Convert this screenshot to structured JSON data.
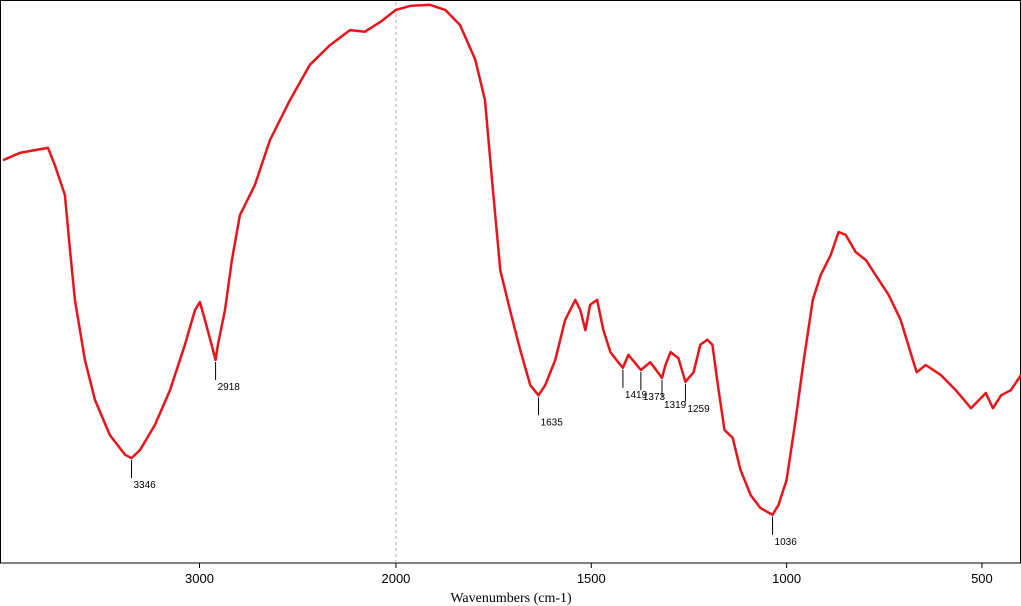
{
  "chart_data": {
    "type": "line",
    "x_label": "Wavenumbers (cm-1)",
    "xlim": [
      4000,
      400
    ],
    "xbreak": 2000,
    "xticks": [
      3000,
      2000,
      1500,
      1000,
      500
    ],
    "ylim": [
      0,
      100
    ],
    "color": "#e8141b",
    "x": [
      4000,
      3914,
      3837,
      3771,
      3736,
      3685,
      3659,
      3634,
      3583,
      3532,
      3456,
      3379,
      3346,
      3303,
      3227,
      3150,
      3074,
      3023,
      2998,
      2972,
      2918,
      2906,
      2870,
      2835,
      2794,
      2718,
      2641,
      2540,
      2438,
      2336,
      2234,
      2158,
      2081,
      2000,
      1964,
      1913,
      1874,
      1836,
      1797,
      1772,
      1754,
      1733,
      1708,
      1682,
      1656,
      1635,
      1618,
      1592,
      1567,
      1541,
      1528,
      1515,
      1503,
      1485,
      1469,
      1451,
      1431,
      1419,
      1405,
      1373,
      1349,
      1319,
      1310,
      1297,
      1277,
      1259,
      1238,
      1221,
      1203,
      1190,
      1174,
      1159,
      1138,
      1118,
      1092,
      1067,
      1036,
      1021,
      1000,
      977,
      956,
      933,
      913,
      887,
      867,
      849,
      823,
      797,
      772,
      739,
      708,
      677,
      667,
      644,
      605,
      567,
      528,
      490,
      472,
      451,
      426,
      400
    ],
    "values": [
      71.8,
      73.1,
      73.6,
      74.0,
      70.9,
      65.6,
      55.8,
      46.9,
      36.2,
      29.1,
      22.8,
      19.3,
      18.7,
      20.1,
      24.6,
      30.8,
      38.9,
      45.1,
      46.5,
      43.3,
      36.2,
      38.9,
      45.1,
      54.0,
      62.0,
      67.4,
      75.4,
      82.5,
      88.8,
      92.3,
      95.0,
      94.7,
      96.4,
      98.6,
      99.3,
      99.5,
      98.6,
      95.9,
      89.7,
      82.5,
      68.3,
      52.2,
      45.1,
      38.0,
      31.7,
      29.9,
      31.7,
      36.2,
      43.3,
      46.9,
      45.1,
      41.5,
      46.0,
      46.9,
      41.5,
      37.6,
      35.8,
      34.8,
      37.1,
      34.4,
      35.8,
      33.0,
      35.3,
      37.6,
      36.5,
      32.3,
      34.0,
      38.9,
      39.8,
      38.9,
      30.8,
      23.7,
      22.3,
      16.6,
      12.1,
      9.8,
      8.6,
      10.3,
      14.8,
      25.5,
      36.2,
      46.9,
      51.3,
      54.9,
      59.0,
      58.5,
      55.4,
      54.0,
      51.3,
      47.8,
      43.3,
      36.2,
      34.0,
      35.3,
      33.5,
      30.8,
      27.6,
      30.3,
      27.6,
      29.9,
      30.8,
      33.5
    ],
    "annotations": [
      {
        "label": "3346",
        "x": 3346,
        "y": 18.7
      },
      {
        "label": "2918",
        "x": 2918,
        "y": 36.2
      },
      {
        "label": "1635",
        "x": 1635,
        "y": 29.9
      },
      {
        "label": "1419",
        "x": 1419,
        "y": 34.8
      },
      {
        "label": "1373",
        "x": 1373,
        "y": 34.4
      },
      {
        "label": "1319",
        "x": 1319,
        "y": 33.0
      },
      {
        "label": "1259",
        "x": 1259,
        "y": 32.3
      },
      {
        "label": "1036",
        "x": 1036,
        "y": 8.6
      }
    ]
  }
}
